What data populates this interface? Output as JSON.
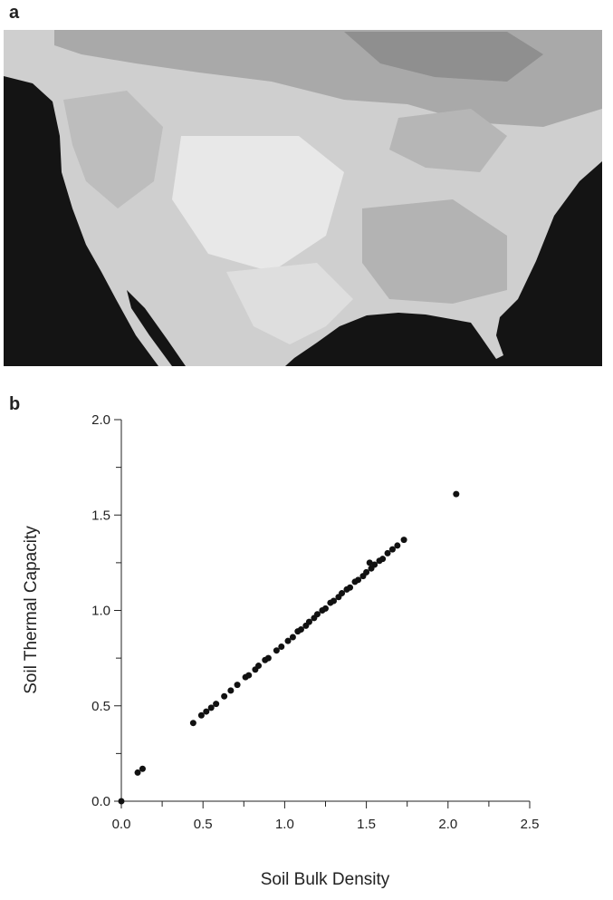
{
  "panel_labels": [
    "a",
    "b"
  ],
  "chart_data": {
    "type": "scatter",
    "xlabel": "Soil Bulk Density",
    "ylabel": "Soil Thermal Capacity",
    "color": "#111111",
    "x": [
      0,
      0.1,
      0.13,
      0.44,
      0.49,
      0.52,
      0.55,
      0.58,
      0.63,
      0.67,
      0.71,
      0.76,
      0.78,
      0.82,
      0.84,
      0.88,
      0.9,
      0.95,
      0.98,
      1.02,
      1.05,
      1.08,
      1.1,
      1.13,
      1.15,
      1.18,
      1.2,
      1.23,
      1.25,
      1.28,
      1.3,
      1.33,
      1.35,
      1.38,
      1.4,
      1.43,
      1.45,
      1.48,
      1.5,
      1.52,
      1.53,
      1.55,
      1.58,
      1.6,
      1.63,
      1.66,
      1.69,
      1.73,
      2.05
    ],
    "values": [
      0,
      0.15,
      0.17,
      0.41,
      0.45,
      0.47,
      0.49,
      0.51,
      0.55,
      0.58,
      0.61,
      0.65,
      0.66,
      0.69,
      0.71,
      0.74,
      0.75,
      0.79,
      0.81,
      0.84,
      0.86,
      0.89,
      0.9,
      0.92,
      0.94,
      0.96,
      0.98,
      1.0,
      1.01,
      1.04,
      1.05,
      1.07,
      1.09,
      1.11,
      1.12,
      1.15,
      1.16,
      1.18,
      1.2,
      1.25,
      1.22,
      1.24,
      1.26,
      1.27,
      1.3,
      1.32,
      1.34,
      1.37,
      1.61
    ],
    "xlim": [
      0,
      2.5
    ],
    "ylim": [
      0,
      2.0
    ],
    "xticks": [
      {
        "value": 0,
        "label": "0.0"
      },
      {
        "value": 0.5,
        "label": "0.5"
      },
      {
        "value": 1,
        "label": "1.0"
      },
      {
        "value": 1.5,
        "label": "1.5"
      },
      {
        "value": 2,
        "label": "2.0"
      },
      {
        "value": 2.5,
        "label": "2.5"
      }
    ],
    "yticks": [
      {
        "value": 0,
        "label": "0.0"
      },
      {
        "value": 0.5,
        "label": "0.5"
      },
      {
        "value": 1,
        "label": "1.0"
      },
      {
        "value": 1.5,
        "label": "1.5"
      },
      {
        "value": 2,
        "label": "2.0"
      }
    ],
    "xminorticks": [
      0.25,
      0.75,
      1.25,
      1.75,
      2.25
    ],
    "yminorticks": [
      0.25,
      0.75,
      1.25,
      1.75
    ]
  }
}
